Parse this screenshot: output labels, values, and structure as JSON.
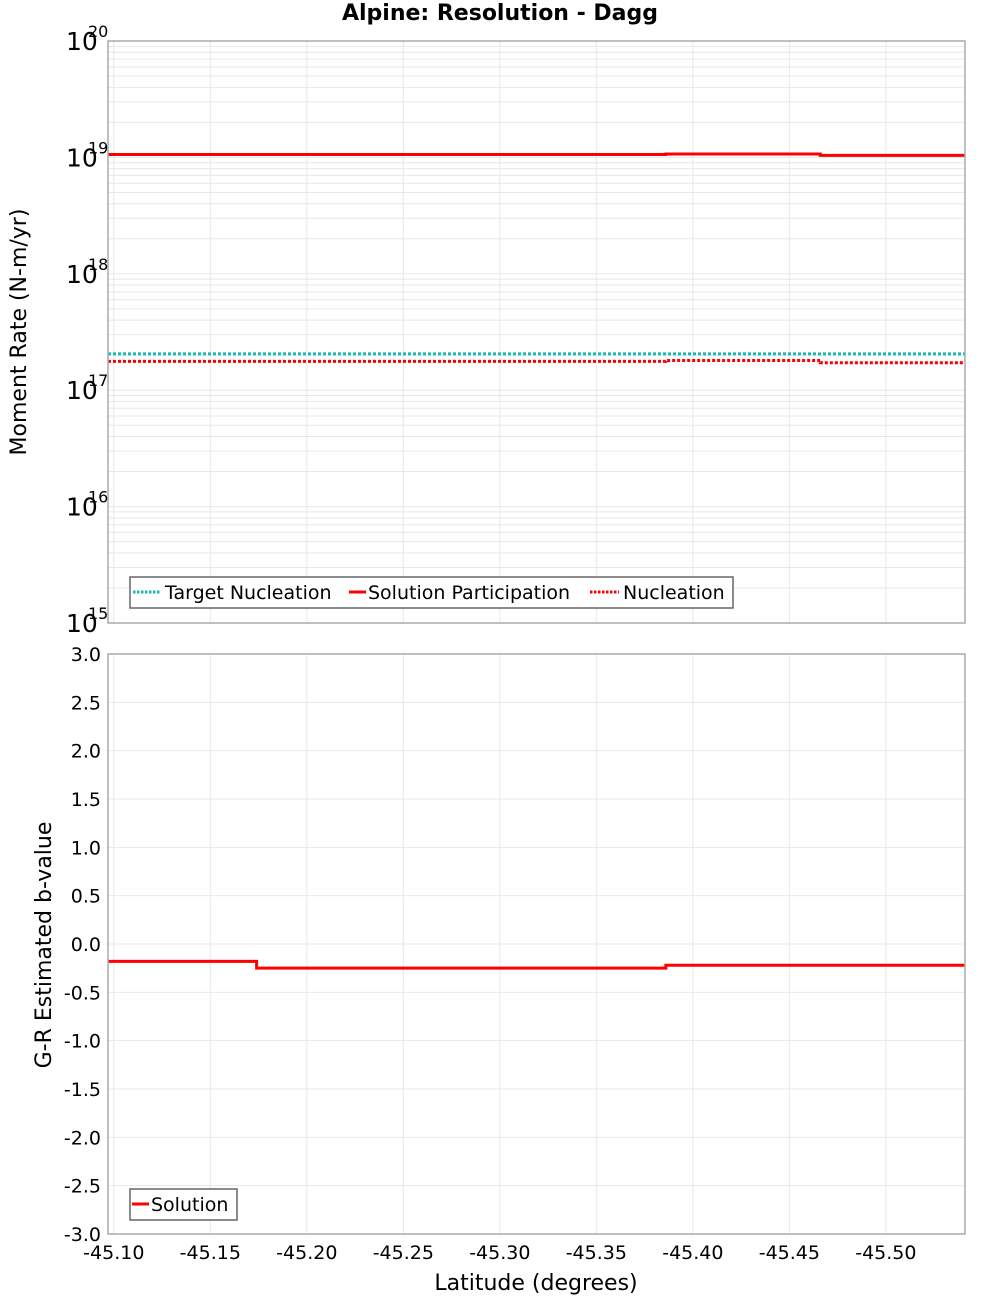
{
  "title": "Alpine: Resolution - Dagg",
  "colors": {
    "target_nucleation": "#17b8b8",
    "solution": "#ff0000",
    "nucleation": "#ff0000",
    "grid": "#e8e8e8",
    "frame": "#aaaaaa"
  },
  "chart_data": [
    {
      "type": "line",
      "title": "Alpine: Resolution - Dagg",
      "xlabel": "Latitude (degrees)",
      "ylabel": "Moment Rate (N-m/yr)",
      "yscale": "log",
      "ylim": [
        1000000000000000.0,
        1e+20
      ],
      "xlim": [
        -45.097,
        -45.541
      ],
      "x_inverted": true,
      "grid": true,
      "legend_position": "lower-left",
      "y_tick_labels": [
        "10^15",
        "10^16",
        "10^17",
        "10^18",
        "10^19",
        "10^20"
      ],
      "x_tick_labels": [
        "-45.10",
        "-45.15",
        "-45.20",
        "-45.25",
        "-45.30",
        "-45.35",
        "-45.40",
        "-45.45",
        "-45.50"
      ],
      "legend": [
        "Target Nucleation",
        "Solution Participation",
        "Nucleation"
      ],
      "series": [
        {
          "name": "Target Nucleation",
          "style": "dotted",
          "color": "#17b8b8",
          "steps": [
            {
              "x0": -45.097,
              "x1": -45.541,
              "y": 2.05e+17
            }
          ]
        },
        {
          "name": "Solution Participation",
          "style": "solid",
          "color": "#ff0000",
          "steps": [
            {
              "x0": -45.097,
              "x1": -45.386,
              "y": 1.06e+19
            },
            {
              "x0": -45.386,
              "x1": -45.466,
              "y": 1.07e+19
            },
            {
              "x0": -45.466,
              "x1": -45.541,
              "y": 1.04e+19
            }
          ]
        },
        {
          "name": "Nucleation",
          "style": "dotted",
          "color": "#ff0000",
          "steps": [
            {
              "x0": -45.097,
              "x1": -45.386,
              "y": 1.77e+17
            },
            {
              "x0": -45.386,
              "x1": -45.466,
              "y": 1.8e+17
            },
            {
              "x0": -45.466,
              "x1": -45.541,
              "y": 1.72e+17
            }
          ]
        }
      ]
    },
    {
      "type": "line",
      "title": "",
      "xlabel": "Latitude (degrees)",
      "ylabel": "G-R Estimated b-value",
      "yscale": "linear",
      "ylim": [
        -3.0,
        3.0
      ],
      "xlim": [
        -45.097,
        -45.541
      ],
      "x_inverted": true,
      "grid": true,
      "legend_position": "lower-left",
      "y_tick_labels": [
        "3.0",
        "2.5",
        "2.0",
        "1.5",
        "1.0",
        "0.5",
        "0.0",
        "-0.5",
        "-1.0",
        "-1.5",
        "-2.0",
        "-2.5",
        "-3.0"
      ],
      "x_tick_labels": [
        "-45.10",
        "-45.15",
        "-45.20",
        "-45.25",
        "-45.30",
        "-45.35",
        "-45.40",
        "-45.45",
        "-45.50"
      ],
      "legend": [
        "Solution"
      ],
      "series": [
        {
          "name": "Solution",
          "style": "solid",
          "color": "#ff0000",
          "steps": [
            {
              "x0": -45.097,
              "x1": -45.174,
              "y": -0.18
            },
            {
              "x0": -45.174,
              "x1": -45.386,
              "y": -0.25
            },
            {
              "x0": -45.386,
              "x1": -45.541,
              "y": -0.22
            }
          ]
        }
      ]
    }
  ],
  "top_panel": {
    "ylabel": "Moment Rate (N-m/yr)",
    "y_ticks": [
      {
        "base": "10",
        "exp": "20"
      },
      {
        "base": "10",
        "exp": "19"
      },
      {
        "base": "10",
        "exp": "18"
      },
      {
        "base": "10",
        "exp": "17"
      },
      {
        "base": "10",
        "exp": "16"
      },
      {
        "base": "10",
        "exp": "15"
      }
    ],
    "legend": {
      "items": [
        "Target Nucleation",
        "Solution Participation",
        "Nucleation"
      ]
    }
  },
  "bottom_panel": {
    "ylabel": "G-R Estimated b-value",
    "y_ticks": [
      "3.0",
      "2.5",
      "2.0",
      "1.5",
      "1.0",
      "0.5",
      "0.0",
      "-0.5",
      "-1.0",
      "-1.5",
      "-2.0",
      "-2.5",
      "-3.0"
    ],
    "legend": {
      "items": [
        "Solution"
      ]
    }
  },
  "x_axis": {
    "label": "Latitude (degrees)",
    "ticks": [
      "-45.10",
      "-45.15",
      "-45.20",
      "-45.25",
      "-45.30",
      "-45.35",
      "-45.40",
      "-45.45",
      "-45.50"
    ]
  }
}
